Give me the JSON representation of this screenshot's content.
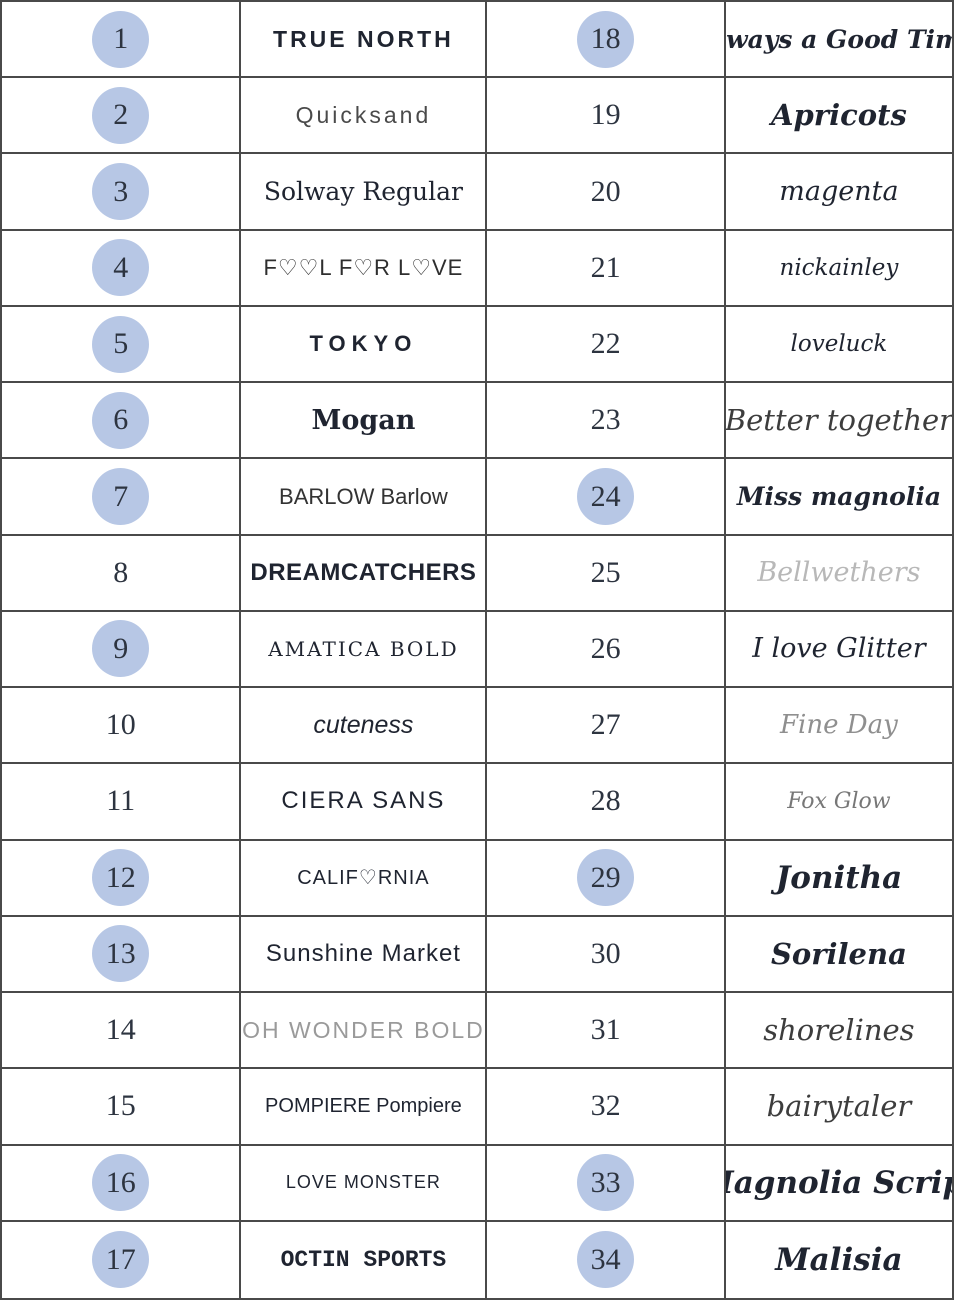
{
  "page": {
    "description": "Numbered font reference table, entries 1-34"
  },
  "colors": {
    "circle_fill": "#b7c7e5",
    "border": "#4a4a4a",
    "number_text": "#2d3440",
    "sample_text": "#1f2430",
    "background": "#ffffff"
  },
  "table": {
    "columns": [
      "number",
      "font-sample",
      "number",
      "font-sample"
    ],
    "rows": [
      {
        "left": {
          "num": "1",
          "circled": true,
          "font": "TRUE NORTH",
          "style": "caps-bold"
        },
        "right": {
          "num": "18",
          "circled": true,
          "font": "always a Good Time",
          "style": "script-bold"
        }
      },
      {
        "left": {
          "num": "2",
          "circled": true,
          "font": "Quicksand",
          "style": "light-sans"
        },
        "right": {
          "num": "19",
          "circled": false,
          "font": "Apricots",
          "style": "script-bold-lg"
        }
      },
      {
        "left": {
          "num": "3",
          "circled": true,
          "font": "Solway Regular",
          "style": "serif"
        },
        "right": {
          "num": "20",
          "circled": false,
          "font": "magenta",
          "style": "script"
        }
      },
      {
        "left": {
          "num": "4",
          "circled": true,
          "font": "F♡♡L F♡R L♡VE",
          "style": "hearts"
        },
        "right": {
          "num": "21",
          "circled": false,
          "font": "nickainley",
          "style": "script-sm"
        }
      },
      {
        "left": {
          "num": "5",
          "circled": true,
          "font": "TOKYO",
          "style": "tokyo"
        },
        "right": {
          "num": "22",
          "circled": false,
          "font": "loveluck",
          "style": "script-sm"
        }
      },
      {
        "left": {
          "num": "6",
          "circled": true,
          "font": "Mogan",
          "style": "serif-bold"
        },
        "right": {
          "num": "23",
          "circled": false,
          "font": "Better together",
          "style": "script-thin-lg"
        }
      },
      {
        "left": {
          "num": "7",
          "circled": true,
          "font": "BARLOW Barlow",
          "style": "cond-sans"
        },
        "right": {
          "num": "24",
          "circled": true,
          "font": "Miss magnolia",
          "style": "script-bold"
        }
      },
      {
        "left": {
          "num": "8",
          "circled": false,
          "font": "DREAMCATCHERS",
          "style": "cond-bold"
        },
        "right": {
          "num": "25",
          "circled": false,
          "font": "Bellwethers",
          "style": "script-faint"
        }
      },
      {
        "left": {
          "num": "9",
          "circled": true,
          "font": "AMATICA BOLD",
          "style": "serif-caps"
        },
        "right": {
          "num": "26",
          "circled": false,
          "font": "I love Glitter",
          "style": "script"
        }
      },
      {
        "left": {
          "num": "10",
          "circled": false,
          "font": "cuteness",
          "style": "hand"
        },
        "right": {
          "num": "27",
          "circled": false,
          "font": "Fine Day",
          "style": "script-gray"
        }
      },
      {
        "left": {
          "num": "11",
          "circled": false,
          "font": "CIERA SANS",
          "style": "sans-caps"
        },
        "right": {
          "num": "28",
          "circled": false,
          "font": "Fox Glow",
          "style": "script-gray-sm"
        }
      },
      {
        "left": {
          "num": "12",
          "circled": true,
          "font": "CALIF♡RNIA",
          "style": "sans-caps-sm"
        },
        "right": {
          "num": "29",
          "circled": true,
          "font": "Jonitha",
          "style": "script-heavy"
        }
      },
      {
        "left": {
          "num": "13",
          "circled": true,
          "font": "Sunshine Market",
          "style": "rounded"
        },
        "right": {
          "num": "30",
          "circled": false,
          "font": "Sorilena",
          "style": "script-bold-lg"
        }
      },
      {
        "left": {
          "num": "14",
          "circled": false,
          "font": "OH WONDER BOLD",
          "style": "gray-caps"
        },
        "right": {
          "num": "31",
          "circled": false,
          "font": "shorelines",
          "style": "script-thin-lg"
        }
      },
      {
        "left": {
          "num": "15",
          "circled": false,
          "font": "POMPIERE Pompiere",
          "style": "narrow"
        },
        "right": {
          "num": "32",
          "circled": false,
          "font": "bairytaler",
          "style": "script-thin-lg"
        }
      },
      {
        "left": {
          "num": "16",
          "circled": true,
          "font": "LOVE MONSTER",
          "style": "narrow-caps"
        },
        "right": {
          "num": "33",
          "circled": true,
          "font": "Magnolia Script",
          "style": "script-heavy"
        }
      },
      {
        "left": {
          "num": "17",
          "circled": true,
          "font": "OCTIN SPORTS",
          "style": "slab"
        },
        "right": {
          "num": "34",
          "circled": true,
          "font": "Malisia",
          "style": "script-heavy"
        }
      }
    ]
  }
}
